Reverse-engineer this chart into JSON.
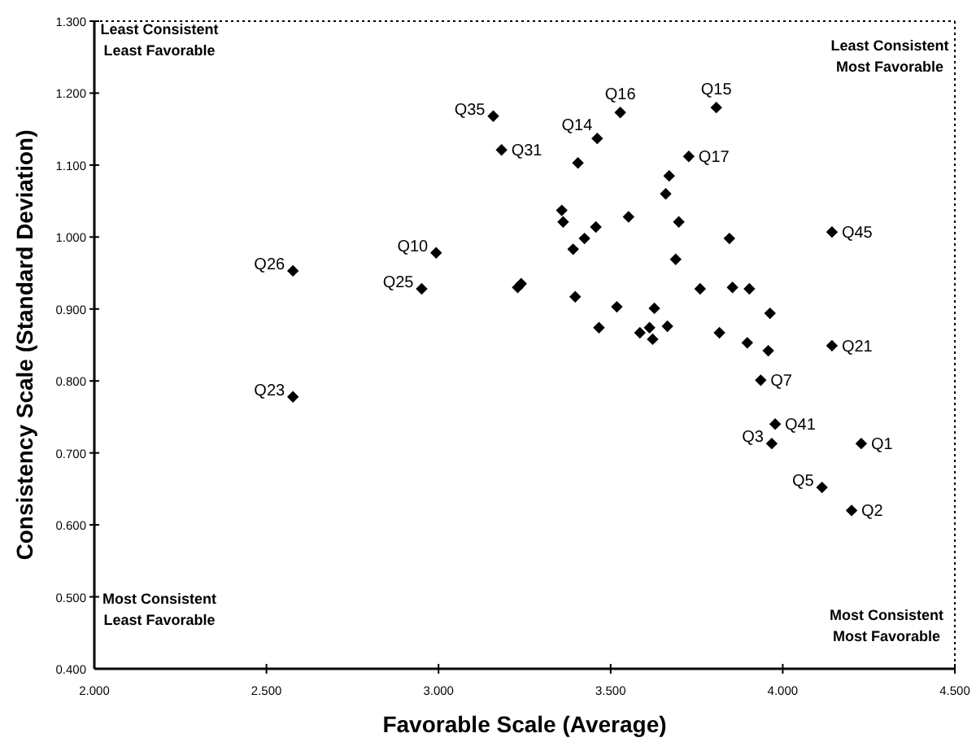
{
  "chart_data": {
    "type": "scatter",
    "xlabel": "Favorable Scale (Average)",
    "ylabel": "Consistency Scale (Standard Deviation)",
    "xlim": [
      2,
      4.5
    ],
    "ylim": [
      0.4,
      1.3
    ],
    "xticks": [
      {
        "value": 2,
        "label": "2.000"
      },
      {
        "value": 2.5,
        "label": "2.500"
      },
      {
        "value": 3,
        "label": "3.000"
      },
      {
        "value": 3.5,
        "label": "3.500"
      },
      {
        "value": 4,
        "label": "4.000"
      },
      {
        "value": 4.5,
        "label": "4.500"
      }
    ],
    "yticks": [
      {
        "value": 0.4,
        "label": "0.400"
      },
      {
        "value": 0.5,
        "label": "0.500"
      },
      {
        "value": 0.6,
        "label": "0.600"
      },
      {
        "value": 0.7,
        "label": "0.700"
      },
      {
        "value": 0.8,
        "label": "0.800"
      },
      {
        "value": 0.9,
        "label": "0.900"
      },
      {
        "value": 1,
        "label": "1.000"
      },
      {
        "value": 1.1,
        "label": "1.100"
      },
      {
        "value": 1.2,
        "label": "1.200"
      },
      {
        "value": 1.3,
        "label": "1.300"
      }
    ],
    "marker": "diamond",
    "grid": false,
    "annotations": [
      "Least Consistent\nLeast Favorable",
      "Least Consistent\nMost Favorable",
      "Most Consistent\nLeast Favorable",
      "Most Consistent\nMost Favorable"
    ],
    "series": [
      {
        "color": "#000000",
        "x": [
          2.577,
          2.993,
          2.951,
          3.159,
          2.577,
          3.528,
          3.807,
          3.461,
          3.183,
          3.405,
          3.727,
          3.67,
          3.66,
          3.358,
          3.362,
          3.552,
          3.698,
          3.457,
          3.424,
          3.391,
          3.845,
          4.143,
          3.689,
          3.23,
          3.24,
          3.76,
          3.854,
          3.903,
          3.397,
          3.518,
          3.627,
          3.963,
          3.466,
          3.585,
          3.613,
          3.622,
          3.665,
          3.816,
          3.897,
          3.958,
          4.143,
          3.936,
          3.978,
          3.968,
          4.228,
          4.114,
          4.2
        ],
        "values": [
          0.953,
          0.978,
          0.928,
          1.168,
          0.778,
          1.173,
          1.18,
          1.137,
          1.121,
          1.103,
          1.112,
          1.085,
          1.06,
          1.037,
          1.021,
          1.028,
          1.021,
          1.014,
          0.998,
          0.983,
          0.998,
          1.007,
          0.969,
          0.93,
          0.935,
          0.928,
          0.93,
          0.928,
          0.917,
          0.903,
          0.901,
          0.894,
          0.874,
          0.867,
          0.874,
          0.858,
          0.876,
          0.867,
          0.853,
          0.842,
          0.849,
          0.801,
          0.74,
          0.713,
          0.713,
          0.652,
          0.62
        ],
        "value_labels": [
          "Q26",
          "Q10",
          "Q25",
          "Q35",
          "Q23",
          "Q16",
          "Q15",
          "Q14",
          "Q31",
          null,
          "Q17",
          null,
          null,
          null,
          null,
          null,
          null,
          null,
          null,
          null,
          null,
          "Q45",
          null,
          null,
          null,
          null,
          null,
          null,
          null,
          null,
          null,
          null,
          null,
          null,
          null,
          null,
          null,
          null,
          null,
          null,
          "Q21",
          "Q7",
          "Q41",
          "Q3",
          "Q1",
          "Q5",
          "Q2"
        ]
      }
    ]
  }
}
